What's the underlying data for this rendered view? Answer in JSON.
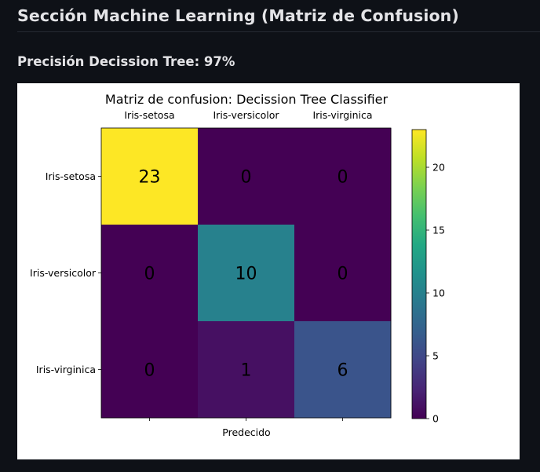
{
  "section": {
    "title": "Sección Machine Learning (Matriz de Confusion)"
  },
  "subheader": {
    "text": "Precisión Decission Tree: 97%"
  },
  "chart_data": {
    "type": "heatmap",
    "title": "Matriz de confusion: Decission Tree Classifier",
    "xlabel": "Predecido",
    "ylabel": "",
    "x_categories": [
      "Iris-setosa",
      "Iris-versicolor",
      "Iris-virginica"
    ],
    "y_categories": [
      "Iris-setosa",
      "Iris-versicolor",
      "Iris-virginica"
    ],
    "matrix": [
      [
        23,
        0,
        0
      ],
      [
        0,
        10,
        0
      ],
      [
        0,
        1,
        6
      ]
    ],
    "colormap": "viridis",
    "color_range": [
      0,
      23
    ],
    "colorbar_ticks": [
      0,
      5,
      10,
      15,
      20
    ],
    "x_tick_position": "top",
    "grid": false
  }
}
